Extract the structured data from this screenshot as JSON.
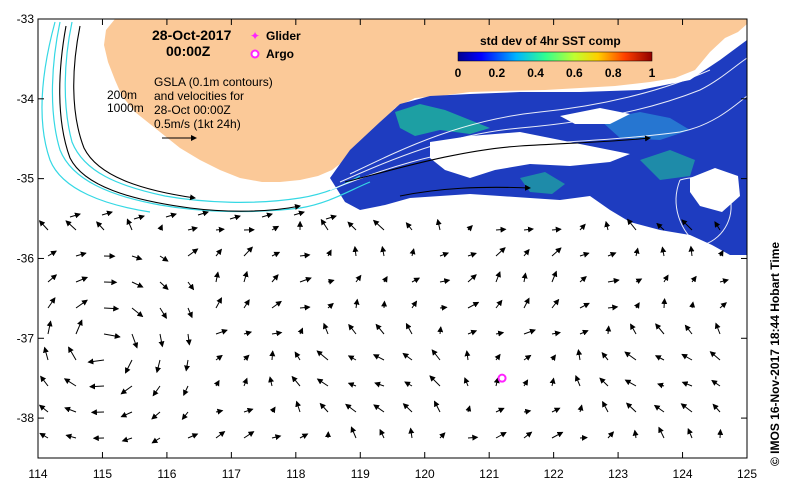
{
  "map": {
    "date_line": "28-Oct-2017",
    "time_line": "00:00Z",
    "legend": {
      "glider": "Glider",
      "argo": "Argo"
    },
    "isobaths": {
      "shallow": "200m",
      "deep": "1000m"
    },
    "description": [
      "GSLA (0.1m contours)",
      "and velocities for",
      "28-Oct 00:00Z",
      "0.5m/s (1kt 24h)"
    ],
    "colorbar": {
      "title": "std dev of 4hr SST comp",
      "ticks": [
        "0",
        "0.2",
        "0.4",
        "0.6",
        "0.8",
        "1"
      ],
      "range": [
        0,
        1
      ]
    },
    "x_ticks": [
      "114",
      "115",
      "116",
      "117",
      "118",
      "119",
      "120",
      "121",
      "122",
      "123",
      "124",
      "125"
    ],
    "y_ticks": [
      "-33",
      "-34",
      "-35",
      "-36",
      "-37",
      "-38"
    ],
    "extent": {
      "lon": [
        114,
        125
      ],
      "lat": [
        -38.5,
        -33
      ]
    },
    "argo_floats": [
      {
        "lon": 121.2,
        "lat": -37.5
      }
    ],
    "credit": "© IMOS 16-Nov-2017 18:44 Hobart Time",
    "colors": {
      "land": "#fbc998",
      "isobath": "#35d8e4",
      "argo": "#ff22ff",
      "sst_low": "#1e3cc0",
      "sst_mid": "#1ec09a"
    }
  }
}
